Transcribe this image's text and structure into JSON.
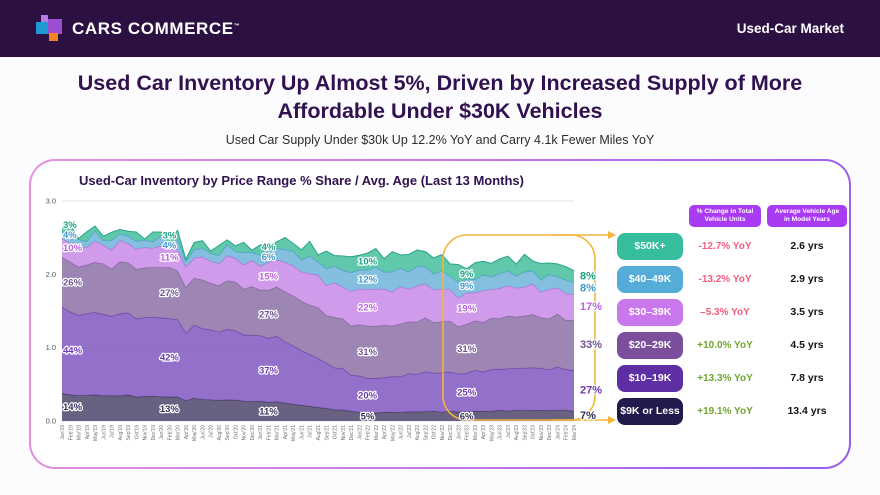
{
  "header": {
    "brand": "CARS COMMERCE",
    "trademark": "™",
    "page_label": "Used-Car Market"
  },
  "headline": "Used Car Inventory Up Almost 5%, Driven by Increased Supply of More Affordable Under $30K Vehicles",
  "subhead": "Used Car Supply Under $30k Up 12.2% YoY and Carry 4.1k Fewer Miles YoY",
  "colors": {
    "topbar_bg": "#2B1041",
    "title_text": "#31114F",
    "highlight_yellow": "#F2B63C",
    "badge_purple": "#A93BF2",
    "negative": "#F25C7F",
    "positive": "#72A42F",
    "gridline": "#E6E3EC"
  },
  "chart_data": {
    "type": "area",
    "stacked": true,
    "title": "Used-Car Inventory by Price Range % Share / Avg. Age (Last 13 Months)",
    "x": [
      "Jan'19",
      "Feb'19",
      "Mar'19",
      "Apr'19",
      "May'19",
      "Jun'19",
      "Jul'19",
      "Aug'19",
      "Sep'19",
      "Oct'19",
      "Nov'19",
      "Dec'19",
      "Jan'20",
      "Feb'20",
      "Mar'20",
      "Apr'20",
      "May'20",
      "Jun'20",
      "Jul'20",
      "Aug'20",
      "Sep'20",
      "Oct'20",
      "Nov'20",
      "Dec'20",
      "Jan'21",
      "Feb'21",
      "Mar'21",
      "Apr'21",
      "May'21",
      "Jun'21",
      "Jul'21",
      "Aug'21",
      "Sep'21",
      "Oct'21",
      "Nov'21",
      "Dec'21",
      "Jan'22",
      "Feb'22",
      "Mar'22",
      "Apr'22",
      "May'22",
      "Jun'22",
      "Jul'22",
      "Aug'22",
      "Sep'22",
      "Oct'22",
      "Nov'22",
      "Dec'22",
      "Jan'23",
      "Feb'23",
      "Mar'23",
      "Apr'23",
      "May'23",
      "Jun'23",
      "Jul'23",
      "Aug'23",
      "Sep'23",
      "Oct'23",
      "Nov'23",
      "Dec'23",
      "Jan'24",
      "Feb'24",
      "Mar'24"
    ],
    "y_axis": {
      "min": 0,
      "max": 3,
      "ticks": [
        "0.0",
        "1.0",
        "2.0",
        "3.0"
      ],
      "grid": true
    },
    "legend_position": "right",
    "label_months": [
      0,
      13,
      25,
      37,
      49,
      62
    ],
    "series": [
      {
        "name": "$9K or Less",
        "fill": "#5B5476",
        "stroke": "#3F3A58",
        "label_color": "#33305A",
        "shares_at_keyframes": [
          14,
          13,
          11,
          5,
          6,
          7
        ]
      },
      {
        "name": "$10–19K",
        "fill": "#8A64C4",
        "stroke": "#6A3FAE",
        "label_color": "#6C3BB2",
        "shares_at_keyframes": [
          44,
          42,
          37,
          20,
          25,
          27
        ]
      },
      {
        "name": "$20–29K",
        "fill": "#957CAC",
        "stroke": "#7A6292",
        "label_color": "#6F5691",
        "shares_at_keyframes": [
          26,
          27,
          27,
          31,
          31,
          33
        ]
      },
      {
        "name": "$30–39K",
        "fill": "#CB93E8",
        "stroke": "#B16ED8",
        "label_color": "#BB5FE0",
        "shares_at_keyframes": [
          10,
          11,
          15,
          22,
          19,
          17
        ]
      },
      {
        "name": "$40–49K",
        "fill": "#79BADC",
        "stroke": "#519DC8",
        "label_color": "#3E97C8",
        "shares_at_keyframes": [
          4,
          4,
          6,
          12,
          9,
          8
        ]
      },
      {
        "name": "$50K+",
        "fill": "#54C3A5",
        "stroke": "#2EA88A",
        "label_color": "#1CA184",
        "shares_at_keyframes": [
          3,
          3,
          4,
          10,
          9,
          8
        ]
      }
    ],
    "totals_keyframes": [
      [
        0,
        2.64
      ],
      [
        2,
        2.56
      ],
      [
        4,
        2.62
      ],
      [
        6,
        2.54
      ],
      [
        8,
        2.6
      ],
      [
        10,
        2.52
      ],
      [
        12,
        2.6
      ],
      [
        13,
        2.52
      ],
      [
        14,
        2.5
      ],
      [
        15,
        2.24
      ],
      [
        16,
        2.44
      ],
      [
        18,
        2.38
      ],
      [
        20,
        2.44
      ],
      [
        22,
        2.38
      ],
      [
        24,
        2.35
      ],
      [
        26,
        2.5
      ],
      [
        28,
        2.42
      ],
      [
        30,
        2.34
      ],
      [
        32,
        2.3
      ],
      [
        34,
        2.26
      ],
      [
        36,
        2.25
      ],
      [
        38,
        2.3
      ],
      [
        40,
        2.26
      ],
      [
        42,
        2.32
      ],
      [
        44,
        2.28
      ],
      [
        46,
        2.22
      ],
      [
        48,
        2.12
      ],
      [
        50,
        2.14
      ],
      [
        52,
        2.17
      ],
      [
        54,
        2.2
      ],
      [
        56,
        2.24
      ],
      [
        58,
        2.16
      ],
      [
        60,
        2.12
      ],
      [
        62,
        2.06
      ]
    ],
    "highlight_note": "Last 13 months highlighted with golden rounded box linked by arrows to the legend"
  },
  "legend": {
    "col1_header": "% Change in Total Vehicle Units",
    "col2_header": "Average Vehicle Age in Model Years",
    "rows": [
      {
        "range": "$50K+",
        "chip_bg": "#35BD9D",
        "change": "-12.7% YoY",
        "change_sign": "neg",
        "age": "2.6 yrs"
      },
      {
        "range": "$40–49K",
        "chip_bg": "#56ACD8",
        "change": "-13.2% YoY",
        "change_sign": "neg",
        "age": "2.9 yrs"
      },
      {
        "range": "$30–39K",
        "chip_bg": "#C878EC",
        "change": "–5.3% YoY",
        "change_sign": "neg",
        "age": "3.5 yrs"
      },
      {
        "range": "$20–29K",
        "chip_bg": "#7B4F9C",
        "change": "+10.0% YoY",
        "change_sign": "pos",
        "age": "4.5 yrs"
      },
      {
        "range": "$10–19K",
        "chip_bg": "#5D2FA3",
        "change": "+13.3% YoY",
        "change_sign": "pos",
        "age": "7.8 yrs"
      },
      {
        "range": "$9K or Less",
        "chip_bg": "#211A4D",
        "change": "+19.1% YoY",
        "change_sign": "pos",
        "age": "13.4 yrs"
      }
    ]
  }
}
